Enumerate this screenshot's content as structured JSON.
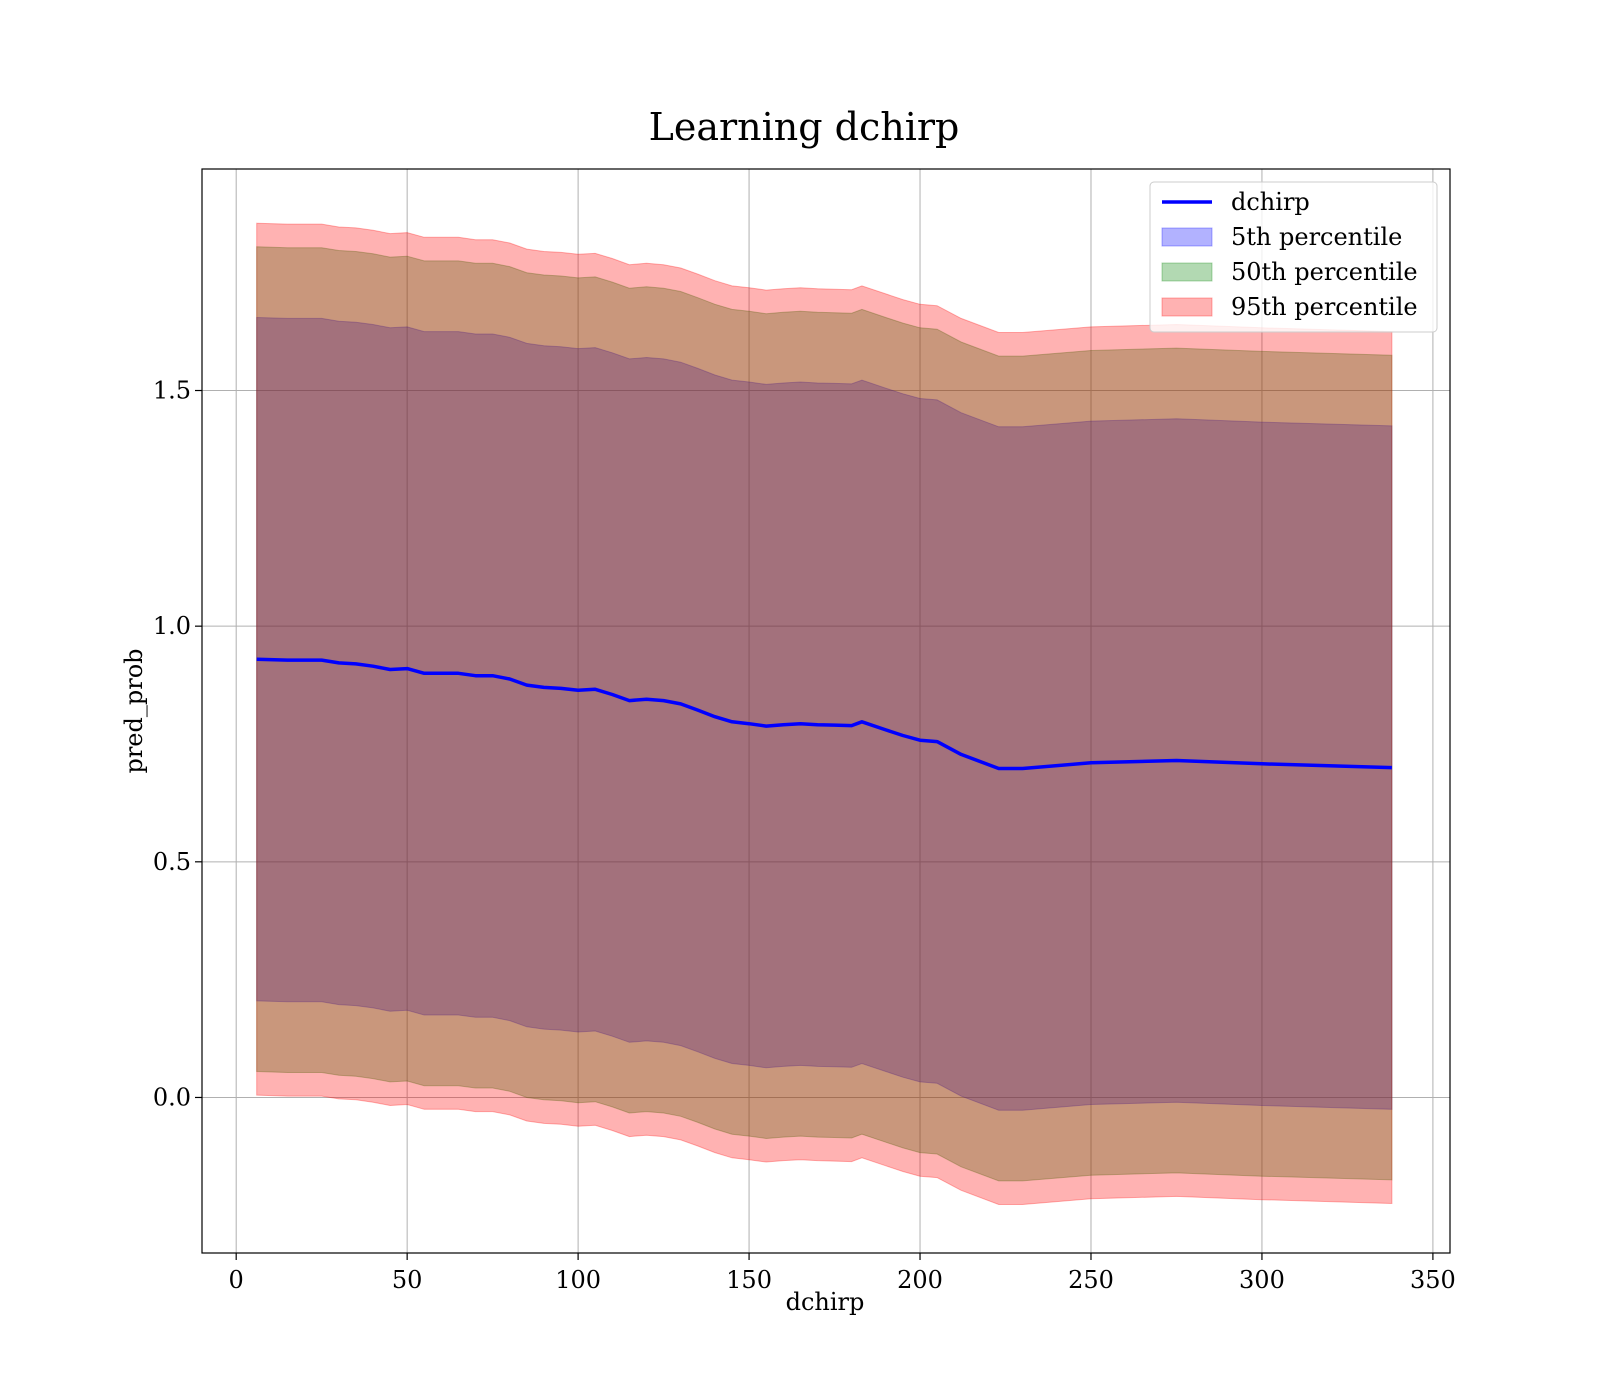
{
  "chart_data": {
    "type": "line",
    "title": "Learning dchirp",
    "xlabel": "dchirp",
    "ylabel": "pred_prob",
    "xlim": [
      -10,
      355
    ],
    "ylim": [
      -0.33,
      1.97
    ],
    "xticks": [
      0,
      50,
      100,
      150,
      200,
      250,
      300,
      350
    ],
    "yticks": [
      0.0,
      0.5,
      1.0,
      1.5
    ],
    "xtick_labels": [
      "0",
      "50",
      "100",
      "150",
      "200",
      "250",
      "300",
      "350"
    ],
    "ytick_labels": [
      "0.0",
      "0.5",
      "1.0",
      "1.5"
    ],
    "grid": true,
    "legend_position": "top-right",
    "x": [
      6,
      15,
      25,
      30,
      35,
      40,
      45,
      50,
      55,
      60,
      65,
      70,
      75,
      80,
      85,
      90,
      95,
      100,
      105,
      110,
      115,
      120,
      125,
      130,
      135,
      140,
      145,
      150,
      155,
      160,
      165,
      170,
      175,
      180,
      183,
      190,
      195,
      200,
      205,
      212,
      223,
      230,
      250,
      275,
      300,
      338
    ],
    "series": [
      {
        "name": "dchirp",
        "kind": "line",
        "color": "#0000ff",
        "values": [
          0.93,
          0.928,
          0.928,
          0.922,
          0.92,
          0.915,
          0.908,
          0.91,
          0.9,
          0.9,
          0.9,
          0.895,
          0.895,
          0.888,
          0.875,
          0.87,
          0.868,
          0.864,
          0.866,
          0.855,
          0.842,
          0.845,
          0.842,
          0.835,
          0.822,
          0.808,
          0.797,
          0.793,
          0.788,
          0.791,
          0.793,
          0.791,
          0.79,
          0.789,
          0.797,
          0.78,
          0.768,
          0.758,
          0.755,
          0.728,
          0.698,
          0.698,
          0.71,
          0.715,
          0.708,
          0.7
        ]
      },
      {
        "name": "5th percentile",
        "kind": "band",
        "color": "#0000ff",
        "lower": [
          0.205,
          0.203,
          0.203,
          0.197,
          0.195,
          0.19,
          0.183,
          0.185,
          0.175,
          0.175,
          0.175,
          0.17,
          0.17,
          0.163,
          0.15,
          0.145,
          0.143,
          0.139,
          0.141,
          0.13,
          0.117,
          0.12,
          0.117,
          0.11,
          0.097,
          0.083,
          0.072,
          0.068,
          0.063,
          0.066,
          0.068,
          0.066,
          0.065,
          0.064,
          0.072,
          0.055,
          0.043,
          0.033,
          0.03,
          0.003,
          -0.027,
          -0.027,
          -0.015,
          -0.01,
          -0.017,
          -0.025
        ],
        "upper": [
          1.655,
          1.653,
          1.653,
          1.647,
          1.645,
          1.64,
          1.633,
          1.635,
          1.625,
          1.625,
          1.625,
          1.62,
          1.62,
          1.613,
          1.6,
          1.595,
          1.593,
          1.589,
          1.591,
          1.58,
          1.567,
          1.57,
          1.567,
          1.56,
          1.547,
          1.533,
          1.522,
          1.518,
          1.513,
          1.516,
          1.518,
          1.516,
          1.515,
          1.514,
          1.522,
          1.505,
          1.493,
          1.483,
          1.48,
          1.453,
          1.423,
          1.423,
          1.435,
          1.44,
          1.433,
          1.425
        ]
      },
      {
        "name": "50th percentile",
        "kind": "band",
        "color": "#008000",
        "lower": [
          0.055,
          0.053,
          0.053,
          0.047,
          0.045,
          0.04,
          0.033,
          0.035,
          0.025,
          0.025,
          0.025,
          0.02,
          0.02,
          0.013,
          0.0,
          -0.005,
          -0.007,
          -0.011,
          -0.009,
          -0.02,
          -0.033,
          -0.03,
          -0.033,
          -0.04,
          -0.053,
          -0.067,
          -0.078,
          -0.082,
          -0.087,
          -0.084,
          -0.082,
          -0.084,
          -0.085,
          -0.086,
          -0.078,
          -0.095,
          -0.107,
          -0.117,
          -0.12,
          -0.147,
          -0.177,
          -0.177,
          -0.165,
          -0.16,
          -0.167,
          -0.175
        ],
        "upper": [
          1.805,
          1.803,
          1.803,
          1.797,
          1.795,
          1.79,
          1.783,
          1.785,
          1.775,
          1.775,
          1.775,
          1.77,
          1.77,
          1.763,
          1.75,
          1.745,
          1.743,
          1.739,
          1.741,
          1.73,
          1.717,
          1.72,
          1.717,
          1.71,
          1.697,
          1.683,
          1.672,
          1.668,
          1.663,
          1.666,
          1.668,
          1.666,
          1.665,
          1.664,
          1.672,
          1.655,
          1.643,
          1.633,
          1.63,
          1.603,
          1.573,
          1.573,
          1.585,
          1.59,
          1.583,
          1.575
        ]
      },
      {
        "name": "95th percentile",
        "kind": "band",
        "color": "#ff0000",
        "lower": [
          0.005,
          0.003,
          0.003,
          -0.003,
          -0.005,
          -0.01,
          -0.017,
          -0.015,
          -0.025,
          -0.025,
          -0.025,
          -0.03,
          -0.03,
          -0.037,
          -0.05,
          -0.055,
          -0.057,
          -0.061,
          -0.059,
          -0.07,
          -0.083,
          -0.08,
          -0.083,
          -0.09,
          -0.103,
          -0.117,
          -0.128,
          -0.132,
          -0.137,
          -0.134,
          -0.132,
          -0.134,
          -0.135,
          -0.136,
          -0.128,
          -0.145,
          -0.157,
          -0.167,
          -0.17,
          -0.197,
          -0.227,
          -0.227,
          -0.215,
          -0.21,
          -0.217,
          -0.225
        ],
        "upper": [
          1.855,
          1.853,
          1.853,
          1.847,
          1.845,
          1.84,
          1.833,
          1.835,
          1.825,
          1.825,
          1.825,
          1.82,
          1.82,
          1.813,
          1.8,
          1.795,
          1.793,
          1.789,
          1.791,
          1.78,
          1.767,
          1.77,
          1.767,
          1.76,
          1.747,
          1.733,
          1.722,
          1.718,
          1.713,
          1.716,
          1.718,
          1.716,
          1.715,
          1.714,
          1.722,
          1.705,
          1.693,
          1.683,
          1.68,
          1.653,
          1.623,
          1.623,
          1.635,
          1.64,
          1.633,
          1.625
        ]
      }
    ]
  }
}
